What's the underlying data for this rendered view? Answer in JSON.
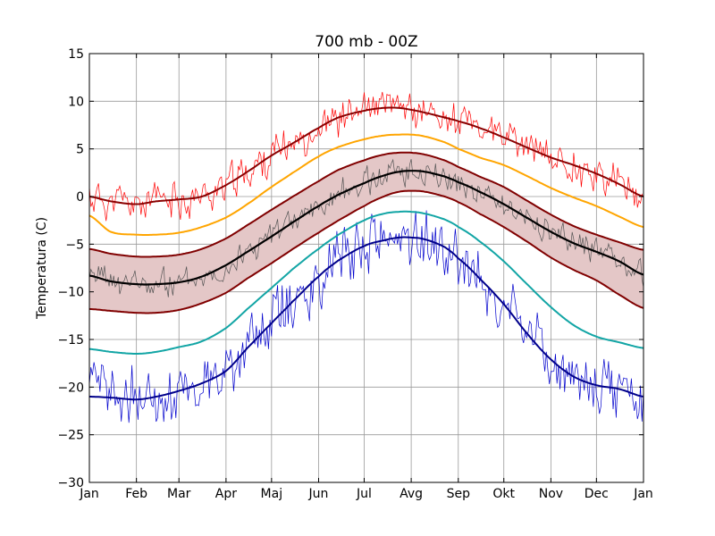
{
  "chart_data": {
    "type": "line",
    "title": "700 mb - 00Z",
    "xlabel": "",
    "ylabel": "Temperatura (C)",
    "xlim": [
      1,
      366
    ],
    "ylim": [
      -30,
      15
    ],
    "yticks": [
      -30,
      -25,
      -20,
      -15,
      -10,
      -5,
      0,
      5,
      10,
      15
    ],
    "xtick_days": [
      1,
      32,
      60,
      91,
      121,
      152,
      182,
      213,
      244,
      274,
      305,
      335,
      366
    ],
    "xtick_labels": [
      "Jan",
      "Feb",
      "Mar",
      "Apr",
      "Maj",
      "Jun",
      "Jul",
      "Avg",
      "Sep",
      "Okt",
      "Nov",
      "Dec",
      "Jan"
    ],
    "grid": true,
    "legend": "none",
    "colors": {
      "record_max": "#8b0000",
      "p90": "#ffa500",
      "band_edge": "#800000",
      "band_fill": "#e4c7c7",
      "mean": "#000000",
      "p10": "#12a5a5",
      "record_min": "#00008b",
      "daily_max": "#ff0000",
      "daily_mean": "#555555",
      "daily_min": "#0000cd"
    },
    "smooth_series": [
      {
        "key": "record_max",
        "x": [
          1,
          15,
          32,
          45,
          60,
          75,
          91,
          105,
          121,
          135,
          152,
          165,
          182,
          195,
          205,
          213,
          222,
          235,
          244,
          258,
          274,
          290,
          305,
          320,
          335,
          350,
          366
        ],
        "y": [
          0.0,
          -0.5,
          -0.8,
          -0.5,
          -0.3,
          0.0,
          1.2,
          2.6,
          4.3,
          5.6,
          7.2,
          8.3,
          9.0,
          9.3,
          9.3,
          9.1,
          8.8,
          8.3,
          7.9,
          7.2,
          6.2,
          5.1,
          4.1,
          3.3,
          2.4,
          1.3,
          0.0
        ]
      },
      {
        "key": "p90",
        "x": [
          1,
          15,
          32,
          45,
          60,
          75,
          91,
          105,
          121,
          135,
          152,
          165,
          182,
          195,
          205,
          213,
          222,
          235,
          244,
          258,
          274,
          290,
          305,
          320,
          335,
          350,
          366
        ],
        "y": [
          -2.0,
          -3.7,
          -4.0,
          -4.0,
          -3.8,
          -3.2,
          -2.2,
          -0.8,
          1.0,
          2.5,
          4.2,
          5.2,
          6.0,
          6.4,
          6.5,
          6.5,
          6.3,
          5.7,
          5.0,
          4.1,
          3.3,
          2.1,
          0.9,
          -0.1,
          -1.0,
          -2.1,
          -3.2
        ]
      },
      {
        "key": "band_upper",
        "x": [
          1,
          15,
          32,
          45,
          60,
          75,
          91,
          105,
          121,
          135,
          152,
          165,
          182,
          195,
          205,
          213,
          222,
          235,
          244,
          258,
          274,
          290,
          305,
          320,
          335,
          350,
          366
        ],
        "y": [
          -5.5,
          -6.0,
          -6.3,
          -6.3,
          -6.1,
          -5.5,
          -4.4,
          -3.0,
          -1.4,
          0.0,
          1.6,
          2.8,
          3.8,
          4.4,
          4.6,
          4.6,
          4.4,
          3.8,
          3.1,
          2.1,
          1.0,
          -0.5,
          -1.9,
          -3.1,
          -4.0,
          -4.8,
          -5.6
        ]
      },
      {
        "key": "mean",
        "x": [
          1,
          15,
          32,
          45,
          60,
          75,
          91,
          105,
          121,
          135,
          152,
          165,
          182,
          195,
          205,
          213,
          222,
          235,
          244,
          258,
          274,
          290,
          305,
          320,
          335,
          350,
          366
        ],
        "y": [
          -8.3,
          -8.9,
          -9.2,
          -9.2,
          -9.0,
          -8.4,
          -7.2,
          -5.8,
          -4.2,
          -2.7,
          -1.0,
          0.2,
          1.4,
          2.2,
          2.6,
          2.7,
          2.6,
          2.1,
          1.5,
          0.5,
          -0.8,
          -2.3,
          -3.7,
          -4.9,
          -5.8,
          -6.8,
          -8.2
        ]
      },
      {
        "key": "band_lower",
        "x": [
          1,
          15,
          32,
          45,
          60,
          75,
          91,
          105,
          121,
          135,
          152,
          165,
          182,
          195,
          205,
          213,
          222,
          235,
          244,
          258,
          274,
          290,
          305,
          320,
          335,
          350,
          366
        ],
        "y": [
          -11.8,
          -12.0,
          -12.2,
          -12.2,
          -11.9,
          -11.2,
          -10.1,
          -8.6,
          -7.0,
          -5.5,
          -3.8,
          -2.5,
          -1.0,
          0.0,
          0.5,
          0.6,
          0.5,
          0.0,
          -0.6,
          -1.8,
          -3.2,
          -4.8,
          -6.4,
          -7.7,
          -8.8,
          -10.3,
          -11.7
        ]
      },
      {
        "key": "p10",
        "x": [
          1,
          15,
          32,
          45,
          60,
          75,
          91,
          105,
          121,
          135,
          152,
          165,
          182,
          195,
          205,
          213,
          222,
          235,
          244,
          258,
          274,
          290,
          305,
          320,
          335,
          350,
          366
        ],
        "y": [
          -16.0,
          -16.3,
          -16.5,
          -16.3,
          -15.8,
          -15.2,
          -13.8,
          -11.8,
          -9.6,
          -7.6,
          -5.5,
          -4.0,
          -2.5,
          -1.8,
          -1.6,
          -1.6,
          -1.8,
          -2.4,
          -3.2,
          -4.7,
          -6.8,
          -9.3,
          -11.6,
          -13.5,
          -14.7,
          -15.3,
          -15.9
        ]
      },
      {
        "key": "record_min",
        "x": [
          1,
          15,
          32,
          45,
          60,
          75,
          91,
          105,
          121,
          135,
          152,
          165,
          182,
          195,
          205,
          213,
          222,
          235,
          244,
          258,
          274,
          290,
          305,
          320,
          335,
          350,
          366
        ],
        "y": [
          -21.0,
          -21.1,
          -21.3,
          -21.0,
          -20.4,
          -19.6,
          -18.3,
          -15.9,
          -13.3,
          -11.0,
          -8.4,
          -6.7,
          -5.2,
          -4.6,
          -4.3,
          -4.3,
          -4.5,
          -5.3,
          -6.5,
          -8.6,
          -11.3,
          -14.5,
          -17.1,
          -18.9,
          -19.8,
          -20.2,
          -21.0
        ]
      }
    ],
    "daily_series": [
      {
        "key": "daily_max",
        "base": "record_max",
        "amp": 1.5,
        "seed": 11
      },
      {
        "key": "daily_mean",
        "base": "mean",
        "amp": 1.1,
        "seed": 23
      },
      {
        "key": "daily_min",
        "base": "record_min",
        "amp": 2.4,
        "seed": 37
      }
    ]
  }
}
